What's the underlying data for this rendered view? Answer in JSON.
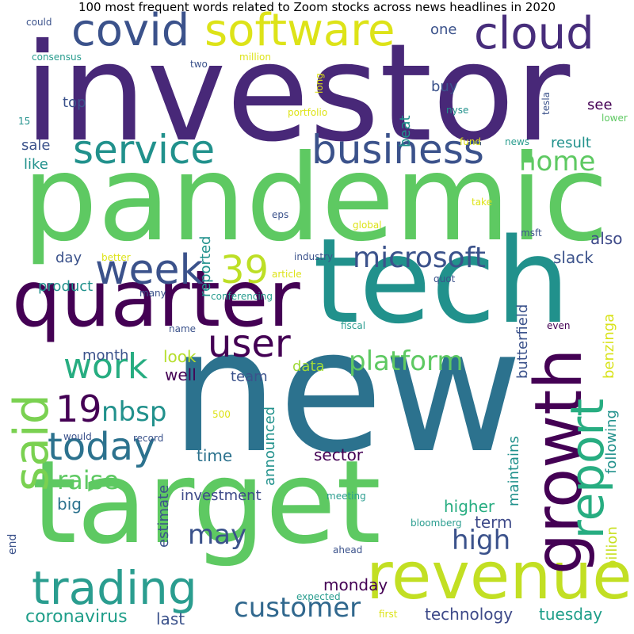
{
  "title": "100 most frequent words related to Zoom stocks across news headlines in 2020",
  "palette": "viridis",
  "words": [
    {
      "text": "investor",
      "color": "#482878"
    },
    {
      "text": "pandemic",
      "color": "#5ec962"
    },
    {
      "text": "tech",
      "color": "#21918c"
    },
    {
      "text": "new",
      "color": "#2c728e"
    },
    {
      "text": "target",
      "color": "#5ec962"
    },
    {
      "text": "quarter",
      "color": "#440154"
    },
    {
      "text": "revenue",
      "color": "#c2df23"
    },
    {
      "text": "growth",
      "color": "#440154"
    },
    {
      "text": "trading",
      "color": "#2a9d8f"
    },
    {
      "text": "covid",
      "color": "#3b528b"
    },
    {
      "text": "software",
      "color": "#dde318"
    },
    {
      "text": "cloud",
      "color": "#472d7b"
    },
    {
      "text": "business",
      "color": "#3b528b"
    },
    {
      "text": "service",
      "color": "#21918c"
    },
    {
      "text": "week",
      "color": "#3b528b"
    },
    {
      "text": "report",
      "color": "#27ad81"
    },
    {
      "text": "said",
      "color": "#7ad151"
    },
    {
      "text": "today",
      "color": "#2c728e"
    },
    {
      "text": "user",
      "color": "#440154"
    },
    {
      "text": "work",
      "color": "#27ad81"
    },
    {
      "text": "platform",
      "color": "#5ec962"
    },
    {
      "text": "39",
      "color": "#bddf26"
    },
    {
      "text": "microsoft",
      "color": "#3b528b"
    },
    {
      "text": "home",
      "color": "#5ec962"
    },
    {
      "text": "customer",
      "color": "#31688e"
    },
    {
      "text": "19",
      "color": "#440154"
    },
    {
      "text": "nbsp",
      "color": "#21918c"
    },
    {
      "text": "high",
      "color": "#3b528b"
    },
    {
      "text": "may",
      "color": "#3b528b"
    },
    {
      "text": "raise",
      "color": "#5ec962"
    },
    {
      "text": "coronavirus",
      "color": "#1f9e89"
    },
    {
      "text": "technology",
      "color": "#3e4a89"
    },
    {
      "text": "tuesday",
      "color": "#1f9e89"
    },
    {
      "text": "monday",
      "color": "#440154"
    },
    {
      "text": "last",
      "color": "#3b528b"
    },
    {
      "text": "higher",
      "color": "#27ad81"
    },
    {
      "text": "term",
      "color": "#3e4a89"
    },
    {
      "text": "sector",
      "color": "#440154"
    },
    {
      "text": "time",
      "color": "#2c728e"
    },
    {
      "text": "investment",
      "color": "#3e4a89"
    },
    {
      "text": "big",
      "color": "#2c728e"
    },
    {
      "text": "estimate",
      "color": "#3b528b"
    },
    {
      "text": "announced",
      "color": "#21918c"
    },
    {
      "text": "data",
      "color": "#a0da39"
    },
    {
      "text": "team",
      "color": "#3b528b"
    },
    {
      "text": "well",
      "color": "#440154"
    },
    {
      "text": "look",
      "color": "#b5de2b"
    },
    {
      "text": "month",
      "color": "#3b528b"
    },
    {
      "text": "butterfield",
      "color": "#3b528b"
    },
    {
      "text": "benzinga",
      "color": "#d8e219"
    },
    {
      "text": "following",
      "color": "#21918c"
    },
    {
      "text": "maintains",
      "color": "#21918c"
    },
    {
      "text": "billion",
      "color": "#c8e020"
    },
    {
      "text": "slack",
      "color": "#3b528b"
    },
    {
      "text": "also",
      "color": "#3e4a89"
    },
    {
      "text": "result",
      "color": "#21918c"
    },
    {
      "text": "see",
      "color": "#440154"
    },
    {
      "text": "buy",
      "color": "#3b528b"
    },
    {
      "text": "beat",
      "color": "#21918c"
    },
    {
      "text": "one",
      "color": "#3b528b"
    },
    {
      "text": "top",
      "color": "#3b528b"
    },
    {
      "text": "sale",
      "color": "#3b528b"
    },
    {
      "text": "like",
      "color": "#21918c"
    },
    {
      "text": "product",
      "color": "#21918c"
    },
    {
      "text": "day",
      "color": "#3b528b"
    },
    {
      "text": "reported",
      "color": "#21918c"
    },
    {
      "text": "end",
      "color": "#3b528b"
    },
    {
      "text": "would",
      "color": "#3b528b"
    },
    {
      "text": "record",
      "color": "#3b528b"
    },
    {
      "text": "500",
      "color": "#dde318"
    },
    {
      "text": "meeting",
      "color": "#2a9d8f"
    },
    {
      "text": "bloomberg",
      "color": "#2a9d8f"
    },
    {
      "text": "ahead",
      "color": "#3b528b"
    },
    {
      "text": "expected",
      "color": "#2a9d8f"
    },
    {
      "text": "first",
      "color": "#dde318"
    },
    {
      "text": "name",
      "color": "#3b528b"
    },
    {
      "text": "fiscal",
      "color": "#2a9d8f"
    },
    {
      "text": "even",
      "color": "#440154"
    },
    {
      "text": "conferencing",
      "color": "#2a9d8f"
    },
    {
      "text": "many",
      "color": "#3b528b"
    },
    {
      "text": "quot",
      "color": "#3b528b"
    },
    {
      "text": "article",
      "color": "#dde318"
    },
    {
      "text": "better",
      "color": "#dde318"
    },
    {
      "text": "industry",
      "color": "#3b528b"
    },
    {
      "text": "global",
      "color": "#dde318"
    },
    {
      "text": "msft",
      "color": "#3b528b"
    },
    {
      "text": "eps",
      "color": "#3b528b"
    },
    {
      "text": "take",
      "color": "#dde318"
    },
    {
      "text": "could",
      "color": "#3b528b"
    },
    {
      "text": "consensus",
      "color": "#2a9d8f"
    },
    {
      "text": "million",
      "color": "#dde318"
    },
    {
      "text": "two",
      "color": "#3b528b"
    },
    {
      "text": "15",
      "color": "#21918c"
    },
    {
      "text": "long",
      "color": "#dde318"
    },
    {
      "text": "portfolio",
      "color": "#dde318"
    },
    {
      "text": "nyse",
      "color": "#21918c"
    },
    {
      "text": "tesla",
      "color": "#3b528b"
    },
    {
      "text": "lower",
      "color": "#5ec962"
    },
    {
      "text": "fund",
      "color": "#dde318"
    },
    {
      "text": "news",
      "color": "#2a9d8f"
    }
  ]
}
